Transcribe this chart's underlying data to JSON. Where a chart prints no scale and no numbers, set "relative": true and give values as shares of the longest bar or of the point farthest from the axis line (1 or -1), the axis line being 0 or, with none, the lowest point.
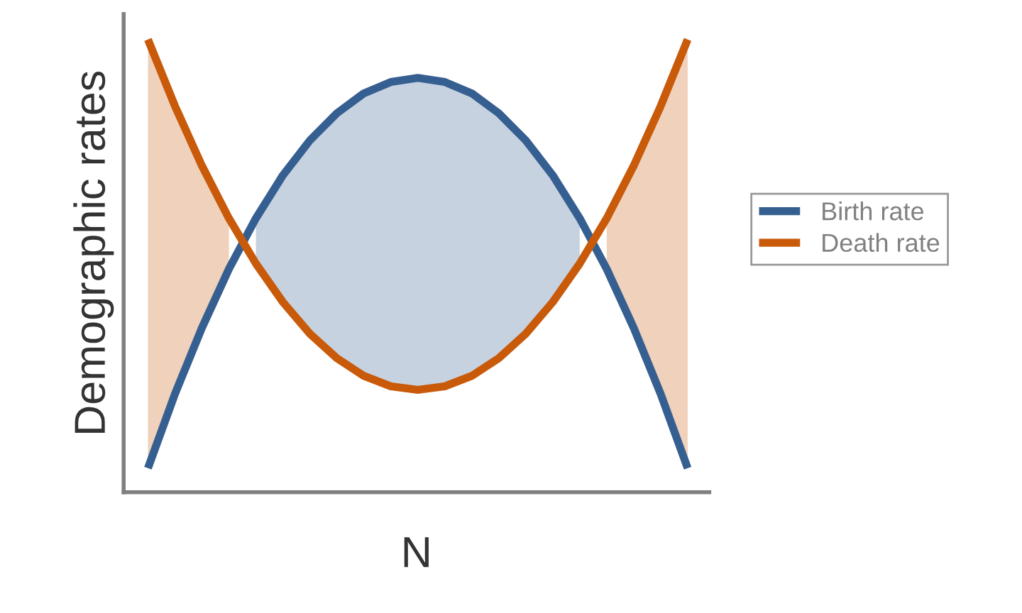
{
  "chart_data": {
    "type": "line",
    "relative": true,
    "xlabel": "N",
    "ylabel": "Demographic rates",
    "legend": "right",
    "marker": "none",
    "line_style": "solid",
    "categories": [
      null,
      null,
      null,
      null,
      null,
      null,
      null,
      null,
      null,
      null,
      null,
      null,
      null,
      null,
      null,
      null,
      null,
      null,
      null,
      null,
      null
    ],
    "series": [
      {
        "name": "Birth rate",
        "color": "#365f91",
        "values": [
          0.053,
          0.217,
          0.363,
          0.493,
          0.605,
          0.7,
          0.777,
          0.837,
          0.881,
          0.906,
          0.915,
          0.906,
          0.881,
          0.837,
          0.777,
          0.7,
          0.605,
          0.493,
          0.363,
          0.217,
          0.053
        ],
        "lower": [
          null,
          null,
          null,
          null,
          0.505,
          0.42,
          0.35,
          0.296,
          0.257,
          0.234,
          0.226,
          0.234,
          0.257,
          0.296,
          0.35,
          0.42,
          0.505,
          null,
          null,
          null,
          null
        ],
        "upper": [
          null,
          null,
          null,
          null,
          0.605,
          0.7,
          0.777,
          0.837,
          0.881,
          0.906,
          0.915,
          0.906,
          0.881,
          0.837,
          0.777,
          0.7,
          0.605,
          null,
          null,
          null,
          null
        ]
      },
      {
        "name": "Death rate",
        "color": "#c85a0a",
        "values": [
          1.0,
          0.853,
          0.721,
          0.605,
          0.505,
          0.42,
          0.35,
          0.296,
          0.257,
          0.234,
          0.226,
          0.234,
          0.257,
          0.296,
          0.35,
          0.42,
          0.505,
          0.605,
          0.721,
          0.853,
          1.0
        ],
        "lower": [
          0.053,
          0.217,
          0.363,
          0.493,
          null,
          null,
          null,
          null,
          null,
          null,
          null,
          null,
          null,
          null,
          null,
          null,
          null,
          0.493,
          0.363,
          0.217,
          0.053
        ],
        "upper": [
          1.0,
          0.853,
          0.721,
          0.605,
          null,
          null,
          null,
          null,
          null,
          null,
          null,
          null,
          null,
          null,
          null,
          null,
          null,
          0.605,
          0.721,
          0.853,
          1.0
        ]
      }
    ]
  }
}
